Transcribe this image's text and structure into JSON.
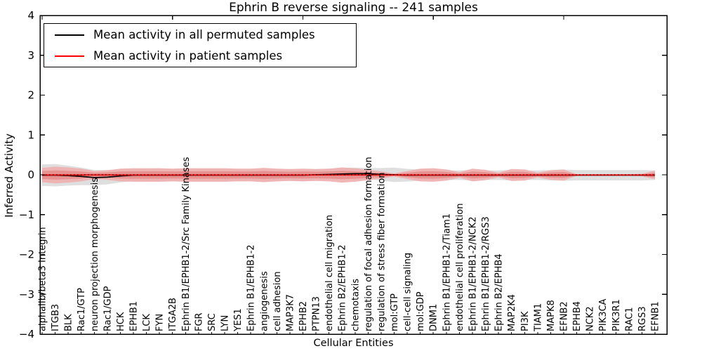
{
  "title": "Ephrin B reverse signaling -- 241 samples",
  "xlabel": "Cellular Entities",
  "ylabel": "Inferred Activity",
  "legend": [
    {
      "label": "Mean activity in all permuted samples",
      "color": "#000000"
    },
    {
      "label": "Mean activity in patient samples",
      "color": "#ff0000"
    }
  ],
  "chart_data": {
    "type": "line",
    "title": "Ephrin B reverse signaling -- 241 samples",
    "xlabel": "Cellular Entities",
    "ylabel": "Inferred Activity",
    "ylim": [
      -4,
      4
    ],
    "yticks": [
      4,
      3,
      2,
      1,
      0,
      -1,
      -2,
      -3,
      -4
    ],
    "ytick_labels": [
      "4",
      "3",
      "2",
      "1",
      "0",
      "−1",
      "−2",
      "−3",
      "−4"
    ],
    "grid": "off",
    "legend_position": "upper left",
    "zero_line": {
      "y": 0,
      "style": "dotted",
      "color": "#000000"
    },
    "categories": [
      "alphaIIb/beta3 Integrin",
      "ITGB3",
      "BLK",
      "Rac1/GTP",
      "neuron projection morphogenesis",
      "Rac1/GDP",
      "HCK",
      "EPHB1",
      "LCK",
      "FYN",
      "ITGA2B",
      "Ephrin B1/EPHB1-2/Src Family Kinases",
      "FGR",
      "SRC",
      "LYN",
      "YES1",
      "Ephrin B1/EPHB1-2",
      "angiogenesis",
      "cell adhesion",
      "MAP3K7",
      "EPHB2",
      "PTPN13",
      "endothelial cell migration",
      "Ephrin B2/EPHB1-2",
      "chemotaxis",
      "regulation of focal adhesion formation",
      "regulation of stress fiber formation",
      "mol:GTP",
      "cell-cell signaling",
      "mol:GDP",
      "DNM1",
      "Ephrin B1/EPHB1-2/Tiam1",
      "endothelial cell proliferation",
      "Ephrin B1/EPHB1-2/NCK2",
      "Ephrin B1/EPHB1-2/RGS3",
      "Ephrin B2/EPHB4",
      "MAP2K4",
      "PI3K",
      "TIAM1",
      "MAPK8",
      "EFNB2",
      "EPHB4",
      "NCK2",
      "PIK3CA",
      "PIK3R1",
      "RAC1",
      "RGS3",
      "EFNB1"
    ],
    "series": [
      {
        "name": "Mean activity in all permuted samples",
        "type": "line",
        "color": "#000000",
        "values": [
          -0.01,
          -0.01,
          -0.02,
          -0.04,
          -0.07,
          -0.06,
          -0.03,
          -0.01,
          -0.01,
          -0.01,
          -0.01,
          -0.01,
          -0.01,
          -0.01,
          -0.01,
          -0.01,
          -0.01,
          -0.01,
          -0.01,
          -0.01,
          -0.01,
          0,
          0.01,
          0.02,
          0.03,
          0.03,
          0.01,
          0,
          -0.01,
          -0.01,
          -0.01,
          -0.01,
          -0.01,
          -0.01,
          -0.01,
          -0.01,
          -0.01,
          -0.01,
          -0.01,
          -0.01,
          -0.01,
          -0.01,
          -0.01,
          -0.01,
          -0.01,
          -0.01,
          -0.01,
          -0.01
        ]
      },
      {
        "name": "Mean activity in patient samples",
        "type": "line",
        "color": "#ff0000",
        "values": [
          -0.005,
          -0.005,
          -0.005,
          -0.005,
          -0.005,
          -0.005,
          -0.005,
          -0.005,
          -0.005,
          -0.005,
          -0.005,
          -0.005,
          -0.005,
          -0.005,
          -0.005,
          -0.005,
          -0.005,
          -0.005,
          -0.005,
          -0.005,
          -0.005,
          -0.005,
          -0.005,
          -0.005,
          -0.005,
          -0.005,
          -0.005,
          -0.005,
          -0.005,
          -0.005,
          -0.005,
          -0.005,
          -0.005,
          -0.005,
          -0.005,
          -0.005,
          -0.005,
          -0.005,
          -0.005,
          -0.005,
          -0.005,
          -0.005,
          -0.005,
          -0.005,
          -0.005,
          -0.005,
          -0.005,
          -0.005
        ]
      },
      {
        "name": "Permuted samples spread (half-width)",
        "type": "band",
        "color": "#dfdfdf",
        "half_widths": [
          0.27,
          0.28,
          0.25,
          0.22,
          0.19,
          0.18,
          0.16,
          0.15,
          0.15,
          0.16,
          0.15,
          0.14,
          0.15,
          0.15,
          0.15,
          0.14,
          0.14,
          0.15,
          0.14,
          0.14,
          0.14,
          0.13,
          0.14,
          0.15,
          0.15,
          0.14,
          0.16,
          0.18,
          0.16,
          0.14,
          0.13,
          0.12,
          0.12,
          0.13,
          0.12,
          0.12,
          0.13,
          0.12,
          0.12,
          0.13,
          0.14,
          0.13,
          0.13,
          0.13,
          0.13,
          0.13,
          0.13,
          0.12
        ]
      },
      {
        "name": "Patient samples spread (half-width)",
        "type": "band",
        "color": "#f0aeae",
        "inner_color": "#e78f8f",
        "half_widths": [
          0.18,
          0.21,
          0.19,
          0.16,
          0.1,
          0.12,
          0.16,
          0.17,
          0.17,
          0.17,
          0.16,
          0.17,
          0.17,
          0.17,
          0.17,
          0.16,
          0.16,
          0.18,
          0.16,
          0.15,
          0.16,
          0.15,
          0.16,
          0.19,
          0.17,
          0.13,
          0.09,
          0.04,
          0.1,
          0.16,
          0.17,
          0.14,
          0.07,
          0.16,
          0.13,
          0.06,
          0.15,
          0.14,
          0.06,
          0.12,
          0.14,
          0.02,
          0.02,
          0.02,
          0.02,
          0.02,
          0.03,
          0.11
        ]
      }
    ]
  }
}
